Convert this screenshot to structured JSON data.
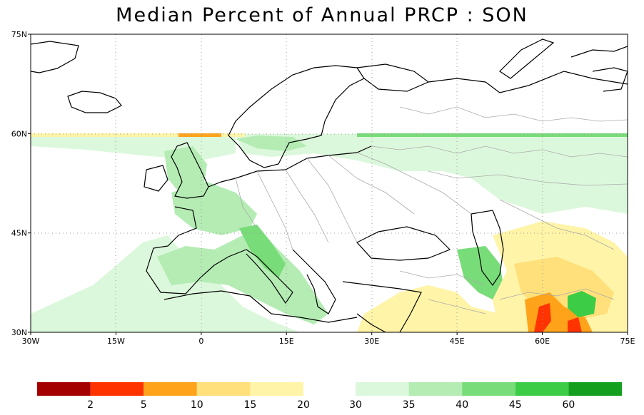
{
  "title": "Median Percent of Annual PRCP  :  SON",
  "lat_axis": {
    "ticks": [
      {
        "value": 75,
        "label": "75N"
      },
      {
        "value": 60,
        "label": "60N"
      },
      {
        "value": 45,
        "label": "45N"
      },
      {
        "value": 30,
        "label": "30N"
      }
    ]
  },
  "lon_axis": {
    "ticks": [
      {
        "value": -30,
        "label": "30W"
      },
      {
        "value": -15,
        "label": "15W"
      },
      {
        "value": 0,
        "label": "0"
      },
      {
        "value": 15,
        "label": "15E"
      },
      {
        "value": 30,
        "label": "30E"
      },
      {
        "value": 45,
        "label": "45E"
      },
      {
        "value": 60,
        "label": "60E"
      },
      {
        "value": 75,
        "label": "75E"
      }
    ]
  },
  "extent": {
    "lon_min": -30,
    "lon_max": 75,
    "lat_min": 30,
    "lat_max": 75
  },
  "colorbar": {
    "labels": [
      "2",
      "5",
      "10",
      "15",
      "20",
      "30",
      "35",
      "40",
      "45",
      "60"
    ],
    "dry_colors": [
      "#a50000",
      "#ff3300",
      "#ffa31a",
      "#ffe07a",
      "#fff4a8"
    ],
    "wet_colors": [
      "#dcf8dc",
      "#b4ecb4",
      "#78dc78",
      "#3ccc46",
      "#14a01e"
    ]
  },
  "colors": {
    "coast": "#000000",
    "borders": "#aaaaaa",
    "grid": "#9a9a9a"
  }
}
